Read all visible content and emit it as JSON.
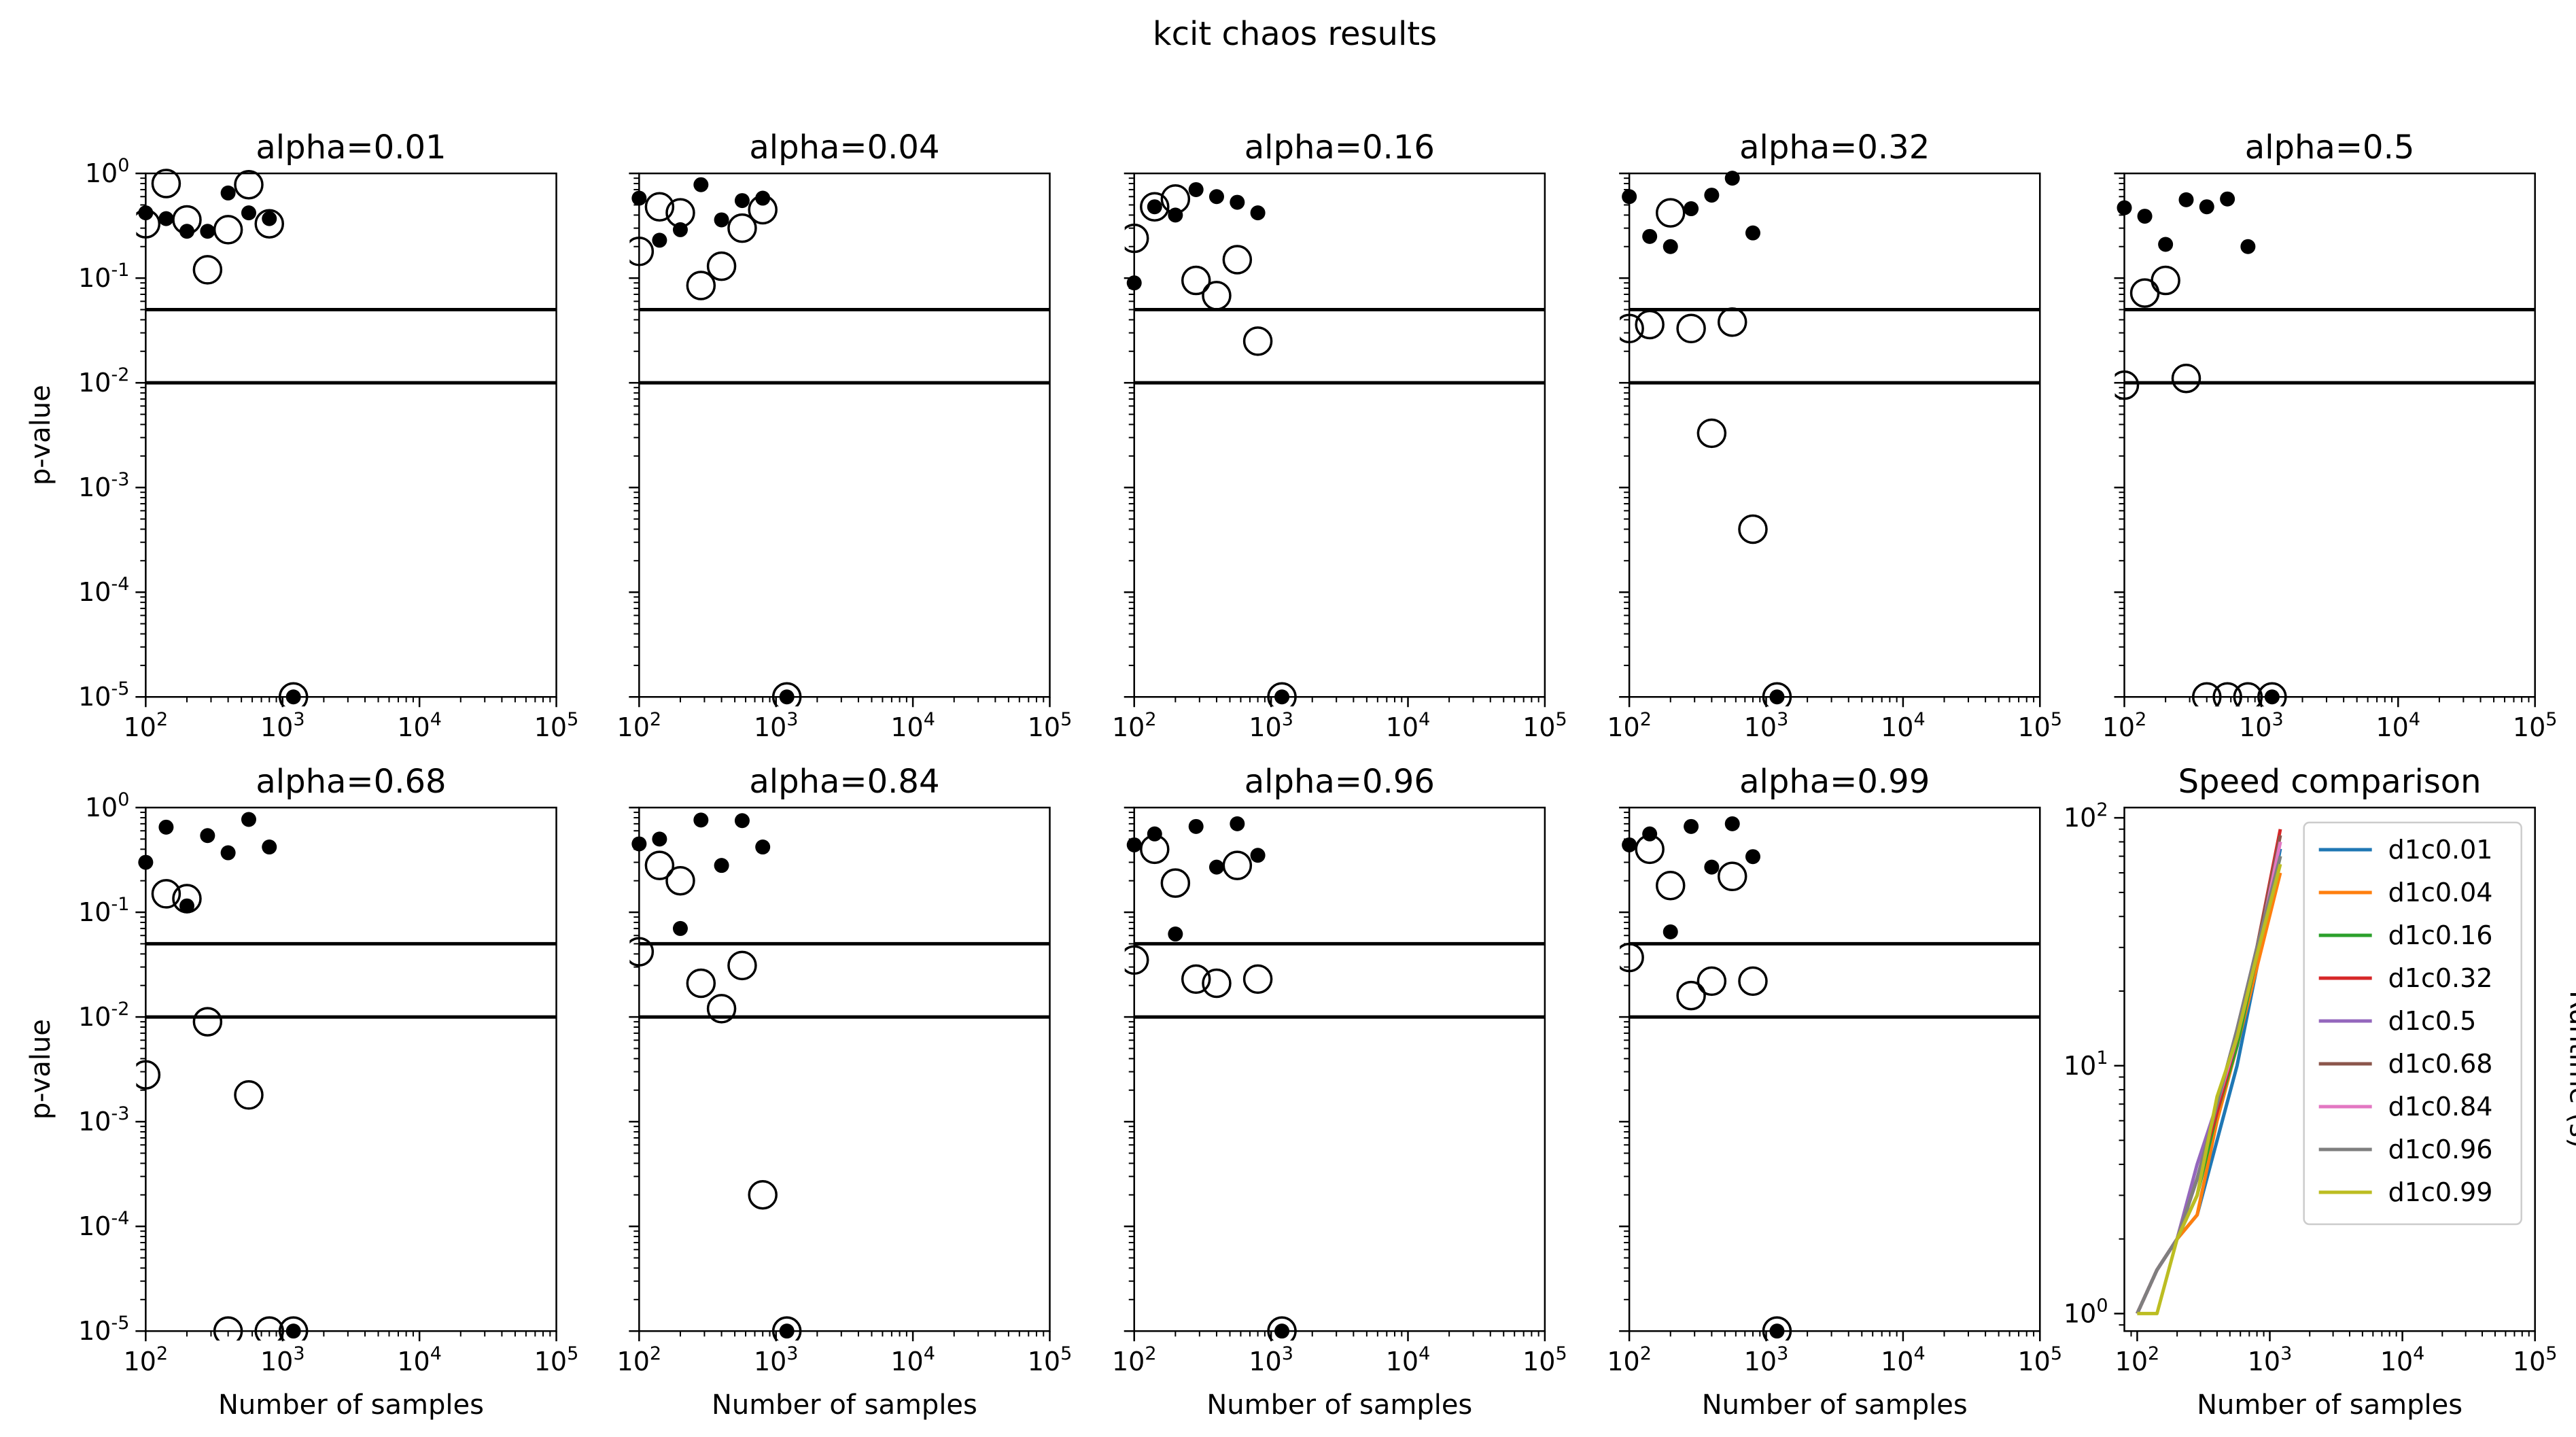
{
  "figure": {
    "title": "kcit chaos results"
  },
  "chart_data": [
    {
      "type": "scatter",
      "title": "alpha=0.01",
      "xlabel": "",
      "ylabel": "p-value",
      "xscale": "log",
      "yscale": "log",
      "xlim": [
        100,
        100000
      ],
      "ylim": [
        1e-05,
        1
      ],
      "hlines": [
        0.05,
        0.01
      ],
      "xticks": [
        "10",
        "10",
        "10",
        "10"
      ],
      "xtick_exp": [
        "2",
        "3",
        "4",
        "5"
      ],
      "yticks": [
        "10",
        "10",
        "10",
        "10",
        "10",
        "10"
      ],
      "ytick_exp": [
        "0",
        "-1",
        "-2",
        "-3",
        "-4",
        "-5"
      ],
      "series": [
        {
          "marker": "open-circle",
          "x": [
            100,
            141,
            200,
            283,
            400,
            566,
            800,
            1200
          ],
          "y": [
            0.33,
            0.8,
            0.36,
            0.12,
            0.29,
            0.78,
            0.33,
            1e-05
          ]
        },
        {
          "marker": "filled-dot",
          "x": [
            100,
            141,
            200,
            283,
            400,
            566,
            800,
            1200
          ],
          "y": [
            0.42,
            0.37,
            0.28,
            0.28,
            0.65,
            0.42,
            0.37,
            1e-05
          ]
        }
      ]
    },
    {
      "type": "scatter",
      "title": "alpha=0.04",
      "xlabel": "",
      "ylabel": "",
      "xscale": "log",
      "yscale": "log",
      "xlim": [
        100,
        100000
      ],
      "ylim": [
        1e-05,
        1
      ],
      "hlines": [
        0.05,
        0.01
      ],
      "xticks": [
        "10",
        "10",
        "10",
        "10"
      ],
      "xtick_exp": [
        "2",
        "3",
        "4",
        "5"
      ],
      "yticks": [],
      "ytick_exp": [],
      "series": [
        {
          "marker": "open-circle",
          "x": [
            100,
            141,
            200,
            283,
            400,
            566,
            800,
            1200
          ],
          "y": [
            0.18,
            0.48,
            0.42,
            0.085,
            0.13,
            0.3,
            0.45,
            1e-05
          ]
        },
        {
          "marker": "filled-dot",
          "x": [
            100,
            141,
            200,
            283,
            400,
            566,
            800,
            1200
          ],
          "y": [
            0.58,
            0.23,
            0.29,
            0.78,
            0.36,
            0.55,
            0.58,
            1e-05
          ]
        }
      ]
    },
    {
      "type": "scatter",
      "title": "alpha=0.16",
      "xlabel": "",
      "ylabel": "",
      "xscale": "log",
      "yscale": "log",
      "xlim": [
        100,
        100000
      ],
      "ylim": [
        1e-05,
        1
      ],
      "hlines": [
        0.05,
        0.01
      ],
      "xticks": [
        "10",
        "10",
        "10",
        "10"
      ],
      "xtick_exp": [
        "2",
        "3",
        "4",
        "5"
      ],
      "yticks": [],
      "ytick_exp": [],
      "series": [
        {
          "marker": "open-circle",
          "x": [
            100,
            141,
            200,
            283,
            400,
            566,
            800,
            1200
          ],
          "y": [
            0.24,
            0.48,
            0.57,
            0.095,
            0.068,
            0.15,
            0.025,
            1e-05
          ]
        },
        {
          "marker": "filled-dot",
          "x": [
            100,
            141,
            200,
            283,
            400,
            566,
            800,
            1200
          ],
          "y": [
            0.09,
            0.48,
            0.4,
            0.7,
            0.6,
            0.53,
            0.42,
            1e-05
          ]
        }
      ]
    },
    {
      "type": "scatter",
      "title": "alpha=0.32",
      "xlabel": "",
      "ylabel": "",
      "xscale": "log",
      "yscale": "log",
      "xlim": [
        100,
        100000
      ],
      "ylim": [
        1e-05,
        1
      ],
      "hlines": [
        0.05,
        0.01
      ],
      "xticks": [
        "10",
        "10",
        "10",
        "10"
      ],
      "xtick_exp": [
        "2",
        "3",
        "4",
        "5"
      ],
      "yticks": [],
      "ytick_exp": [],
      "series": [
        {
          "marker": "open-circle",
          "x": [
            100,
            141,
            200,
            283,
            400,
            566,
            800,
            1200
          ],
          "y": [
            0.033,
            0.036,
            0.42,
            0.033,
            0.0033,
            0.038,
            0.0004,
            1e-05
          ]
        },
        {
          "marker": "filled-dot",
          "x": [
            100,
            141,
            200,
            283,
            400,
            566,
            800,
            1200
          ],
          "y": [
            0.6,
            0.25,
            0.2,
            0.46,
            0.62,
            0.9,
            0.27,
            1e-05
          ]
        }
      ]
    },
    {
      "type": "scatter",
      "title": "alpha=0.5",
      "xlabel": "",
      "ylabel": "",
      "xscale": "log",
      "yscale": "log",
      "xlim": [
        100,
        100000
      ],
      "ylim": [
        1e-05,
        1
      ],
      "hlines": [
        0.05,
        0.01
      ],
      "xticks": [
        "10",
        "10",
        "10",
        "10"
      ],
      "xtick_exp": [
        "2",
        "3",
        "4",
        "5"
      ],
      "yticks": [],
      "ytick_exp": [],
      "series": [
        {
          "marker": "open-circle",
          "x": [
            100,
            141,
            200,
            283,
            400,
            566,
            800,
            1200
          ],
          "y": [
            0.0095,
            0.072,
            0.095,
            0.011,
            1e-05,
            1e-05,
            1e-05,
            1e-05
          ]
        },
        {
          "marker": "filled-dot",
          "x": [
            100,
            141,
            200,
            283,
            400,
            566,
            800,
            1200
          ],
          "y": [
            0.47,
            0.39,
            0.21,
            0.56,
            0.48,
            0.57,
            0.2,
            1e-05
          ]
        }
      ]
    },
    {
      "type": "scatter",
      "title": "alpha=0.68",
      "xlabel": "Number of samples",
      "ylabel": "p-value",
      "xscale": "log",
      "yscale": "log",
      "xlim": [
        100,
        100000
      ],
      "ylim": [
        1e-05,
        1
      ],
      "hlines": [
        0.05,
        0.01
      ],
      "xticks": [
        "10",
        "10",
        "10",
        "10"
      ],
      "xtick_exp": [
        "2",
        "3",
        "4",
        "5"
      ],
      "yticks": [
        "10",
        "10",
        "10",
        "10",
        "10",
        "10"
      ],
      "ytick_exp": [
        "0",
        "-1",
        "-2",
        "-3",
        "-4",
        "-5"
      ],
      "series": [
        {
          "marker": "open-circle",
          "x": [
            100,
            141,
            200,
            283,
            400,
            566,
            800,
            1200
          ],
          "y": [
            0.0028,
            0.15,
            0.135,
            0.009,
            1e-05,
            0.0018,
            1e-05,
            1e-05
          ]
        },
        {
          "marker": "filled-dot",
          "x": [
            100,
            141,
            200,
            283,
            400,
            566,
            800,
            1200
          ],
          "y": [
            0.3,
            0.65,
            0.115,
            0.54,
            0.37,
            0.77,
            0.42,
            1e-05
          ]
        }
      ]
    },
    {
      "type": "scatter",
      "title": "alpha=0.84",
      "xlabel": "Number of samples",
      "ylabel": "",
      "xscale": "log",
      "yscale": "log",
      "xlim": [
        100,
        100000
      ],
      "ylim": [
        1e-05,
        1
      ],
      "hlines": [
        0.05,
        0.01
      ],
      "xticks": [
        "10",
        "10",
        "10",
        "10"
      ],
      "xtick_exp": [
        "2",
        "3",
        "4",
        "5"
      ],
      "yticks": [],
      "ytick_exp": [],
      "series": [
        {
          "marker": "open-circle",
          "x": [
            100,
            141,
            200,
            283,
            400,
            566,
            800,
            1200
          ],
          "y": [
            0.042,
            0.28,
            0.2,
            0.021,
            0.012,
            0.031,
            0.0002,
            1e-05
          ]
        },
        {
          "marker": "filled-dot",
          "x": [
            100,
            141,
            200,
            283,
            400,
            566,
            800,
            1200
          ],
          "y": [
            0.45,
            0.5,
            0.07,
            0.76,
            0.28,
            0.75,
            0.42,
            1e-05
          ]
        }
      ]
    },
    {
      "type": "scatter",
      "title": "alpha=0.96",
      "xlabel": "Number of samples",
      "ylabel": "",
      "xscale": "log",
      "yscale": "log",
      "xlim": [
        100,
        100000
      ],
      "ylim": [
        1e-05,
        1
      ],
      "hlines": [
        0.05,
        0.01
      ],
      "xticks": [
        "10",
        "10",
        "10",
        "10"
      ],
      "xtick_exp": [
        "2",
        "3",
        "4",
        "5"
      ],
      "yticks": [],
      "ytick_exp": [],
      "series": [
        {
          "marker": "open-circle",
          "x": [
            100,
            141,
            200,
            283,
            400,
            566,
            800,
            1200
          ],
          "y": [
            0.035,
            0.4,
            0.19,
            0.023,
            0.021,
            0.28,
            0.023,
            1e-05
          ]
        },
        {
          "marker": "filled-dot",
          "x": [
            100,
            141,
            200,
            283,
            400,
            566,
            800,
            1200
          ],
          "y": [
            0.44,
            0.56,
            0.062,
            0.66,
            0.27,
            0.7,
            0.35,
            1e-05
          ]
        }
      ]
    },
    {
      "type": "scatter",
      "title": "alpha=0.99",
      "xlabel": "Number of samples",
      "ylabel": "",
      "xscale": "log",
      "yscale": "log",
      "xlim": [
        100,
        100000
      ],
      "ylim": [
        1e-05,
        1
      ],
      "hlines": [
        0.05,
        0.01
      ],
      "xticks": [
        "10",
        "10",
        "10",
        "10"
      ],
      "xtick_exp": [
        "2",
        "3",
        "4",
        "5"
      ],
      "yticks": [],
      "ytick_exp": [],
      "series": [
        {
          "marker": "open-circle",
          "x": [
            100,
            141,
            200,
            283,
            400,
            566,
            800,
            1200
          ],
          "y": [
            0.037,
            0.4,
            0.18,
            0.016,
            0.022,
            0.22,
            0.022,
            1e-05
          ]
        },
        {
          "marker": "filled-dot",
          "x": [
            100,
            141,
            200,
            283,
            400,
            566,
            800,
            1200
          ],
          "y": [
            0.44,
            0.56,
            0.065,
            0.66,
            0.27,
            0.7,
            0.34,
            1e-05
          ]
        }
      ]
    },
    {
      "type": "line",
      "title": "Speed comparison",
      "xlabel": "Number of samples",
      "ylabel": "Runtime (s)",
      "xscale": "log",
      "yscale": "log",
      "xlim": [
        80,
        100000
      ],
      "ylim": [
        0.85,
        110
      ],
      "xticks": [
        "10",
        "10",
        "10",
        "10"
      ],
      "xtick_exp": [
        "2",
        "3",
        "4",
        "5"
      ],
      "yticks": [
        "10",
        "10",
        "10"
      ],
      "ytick_exp": [
        "0",
        "1",
        "2"
      ],
      "legend": "top-right",
      "x": [
        100,
        141,
        200,
        283,
        400,
        566,
        800,
        1200
      ],
      "series": [
        {
          "name": "d1c0.01",
          "color": "#1f77b4",
          "values": [
            1.0,
            1.5,
            2.0,
            2.5,
            5.0,
            10.0,
            25.0,
            75.0
          ]
        },
        {
          "name": "d1c0.04",
          "color": "#ff7f0e",
          "values": [
            1.0,
            1.5,
            2.0,
            2.5,
            6.0,
            12.0,
            25.0,
            60.0
          ]
        },
        {
          "name": "d1c0.16",
          "color": "#2ca02c",
          "values": [
            1.0,
            1.5,
            2.0,
            3.0,
            6.5,
            12.0,
            28.0,
            70.0
          ]
        },
        {
          "name": "d1c0.32",
          "color": "#d62728",
          "values": [
            1.0,
            1.5,
            2.0,
            3.5,
            6.5,
            13.0,
            30.0,
            90.0
          ]
        },
        {
          "name": "d1c0.5",
          "color": "#9467bd",
          "values": [
            1.0,
            1.5,
            2.0,
            4.0,
            7.0,
            14.0,
            30.0,
            80.0
          ]
        },
        {
          "name": "d1c0.68",
          "color": "#8c564b",
          "values": [
            1.0,
            1.5,
            2.0,
            3.5,
            7.0,
            14.0,
            30.0,
            85.0
          ]
        },
        {
          "name": "d1c0.84",
          "color": "#e377c2",
          "values": [
            1.0,
            1.5,
            2.0,
            3.5,
            7.0,
            13.0,
            28.0,
            80.0
          ]
        },
        {
          "name": "d1c0.96",
          "color": "#7f7f7f",
          "values": [
            1.0,
            1.5,
            2.0,
            3.5,
            7.0,
            14.0,
            30.0,
            70.0
          ]
        },
        {
          "name": "d1c0.99",
          "color": "#bcbd22",
          "values": [
            1.0,
            1.0,
            2.0,
            3.0,
            7.5,
            13.0,
            28.0,
            65.0
          ]
        }
      ]
    }
  ]
}
